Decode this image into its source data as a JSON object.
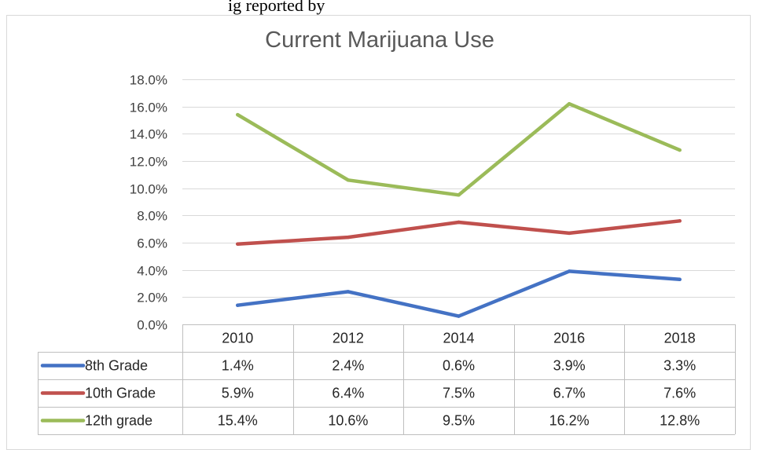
{
  "caption_fragment": "ig  reported by",
  "chart_data": {
    "type": "line",
    "title": "Current Marijuana Use",
    "categories": [
      "2010",
      "2012",
      "2014",
      "2016",
      "2018"
    ],
    "ylim": [
      0,
      18
    ],
    "yticks": [
      "0.0%",
      "2.0%",
      "4.0%",
      "6.0%",
      "8.0%",
      "10.0%",
      "12.0%",
      "14.0%",
      "16.0%",
      "18.0%"
    ],
    "grid": true,
    "legend": "data-table",
    "series": [
      {
        "name": "8th Grade",
        "color": "#4472c4",
        "values": [
          1.4,
          2.4,
          0.6,
          3.9,
          3.3
        ],
        "labels": [
          "1.4%",
          "2.4%",
          "0.6%",
          "3.9%",
          "3.3%"
        ]
      },
      {
        "name": "10th Grade",
        "color": "#c0504d",
        "values": [
          5.9,
          6.4,
          7.5,
          6.7,
          7.6
        ],
        "labels": [
          "5.9%",
          "6.4%",
          "7.5%",
          "6.7%",
          "7.6%"
        ]
      },
      {
        "name": "12th grade",
        "color": "#9bbb59",
        "values": [
          15.4,
          10.6,
          9.5,
          16.2,
          12.8
        ],
        "labels": [
          "15.4%",
          "10.6%",
          "9.5%",
          "16.2%",
          "12.8%"
        ]
      }
    ]
  }
}
